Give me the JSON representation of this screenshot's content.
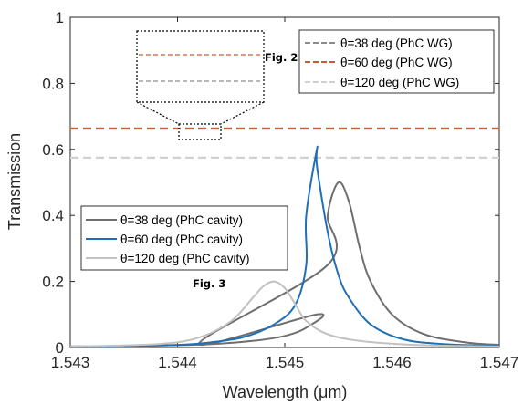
{
  "chart_data": {
    "type": "line",
    "xlabel": "Wavelength (μm)",
    "ylabel": "Transmission",
    "xlim": [
      1.543,
      1.547
    ],
    "ylim": [
      0,
      1
    ],
    "x_ticks": [
      "1.543",
      "1.544",
      "1.545",
      "1.546",
      "1.547"
    ],
    "y_ticks": [
      "0",
      "0.2",
      "0.4",
      "0.6",
      "0.8",
      "1"
    ],
    "grid": false,
    "annotations": [
      "Fig. 2",
      "Fig. 3"
    ],
    "legends": [
      {
        "placement": "top-right",
        "entries": [
          "θ=38 deg (PhC WG)",
          "θ=60 deg (PhC WG)",
          "θ=120 deg (PhC WG)"
        ]
      },
      {
        "placement": "bottom-left",
        "entries": [
          "θ=38 deg (PhC cavity)",
          "θ=60 deg (PhC cavity)",
          "θ=120 deg (PhC cavity)"
        ]
      }
    ],
    "series": [
      {
        "name": "θ=38 deg (PhC WG)",
        "style": "dashed",
        "color": "#8c8c8c",
        "x": [
          1.543,
          1.547
        ],
        "y": [
          0.663,
          0.663
        ]
      },
      {
        "name": "θ=60 deg (PhC WG)",
        "style": "dashed",
        "color": "#c0603a",
        "x": [
          1.543,
          1.547
        ],
        "y": [
          0.663,
          0.663
        ]
      },
      {
        "name": "θ=120 deg (PhC WG)",
        "style": "dashed",
        "color": "#d0d0d0",
        "x": [
          1.543,
          1.547
        ],
        "y": [
          0.575,
          0.575
        ]
      },
      {
        "name": "θ=38 deg (PhC cavity)",
        "style": "solid",
        "color": "#6e6e6e",
        "x": [
          1.543,
          1.5438,
          1.5443,
          1.5447,
          1.545,
          1.5452,
          1.5453,
          1.5442,
          1.5454,
          1.5454,
          1.5455,
          1.5456,
          1.5457,
          1.5458,
          1.546,
          1.5463,
          1.5467,
          1.547
        ],
        "y": [
          0.003,
          0.006,
          0.01,
          0.02,
          0.035,
          0.06,
          0.1,
          0.012,
          0.25,
          0.4,
          0.5,
          0.44,
          0.3,
          0.2,
          0.1,
          0.04,
          0.015,
          0.008
        ]
      },
      {
        "name": "θ=60 deg (PhC cavity)",
        "style": "solid",
        "color": "#1f6fb8",
        "x": [
          1.543,
          1.5438,
          1.5442,
          1.5446,
          1.5449,
          1.5451,
          1.5452,
          1.5452,
          1.5453,
          1.5453,
          1.5454,
          1.5455,
          1.5456,
          1.5458,
          1.5461,
          1.5465,
          1.547
        ],
        "y": [
          0.003,
          0.006,
          0.012,
          0.03,
          0.07,
          0.13,
          0.25,
          0.4,
          0.6,
          0.55,
          0.35,
          0.22,
          0.15,
          0.07,
          0.025,
          0.01,
          0.005
        ]
      },
      {
        "name": "θ=120 deg (PhC cavity)",
        "style": "solid",
        "color": "#c2c2c2",
        "x": [
          1.543,
          1.5438,
          1.5442,
          1.5445,
          1.5447,
          1.5448,
          1.5449,
          1.545,
          1.5451,
          1.5452,
          1.5454,
          1.5457,
          1.5462,
          1.547
        ],
        "y": [
          0.003,
          0.01,
          0.03,
          0.08,
          0.15,
          0.185,
          0.2,
          0.18,
          0.13,
          0.08,
          0.04,
          0.02,
          0.008,
          0.003
        ]
      }
    ]
  }
}
